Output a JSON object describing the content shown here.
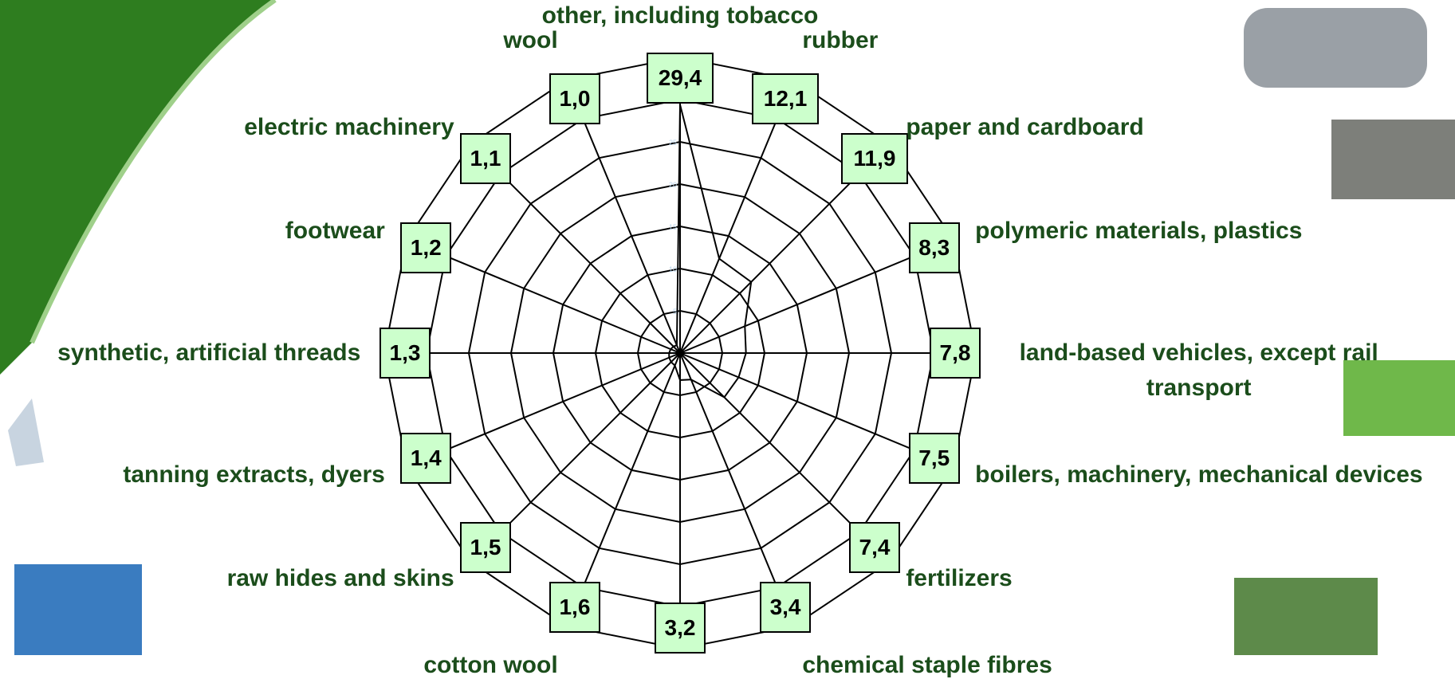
{
  "chart_data": {
    "type": "radar",
    "categories": [
      "other, including tobacco",
      "rubber",
      "paper and cardboard",
      "polymeric materials, plastics",
      "land-based vehicles, except rail transport",
      "boilers, machinery, mechanical devices",
      "fertilizers",
      "chemical staple fibres",
      null,
      "cotton wool",
      "raw hides and skins",
      "tanning extracts, dyers",
      "synthetic, artificial threads",
      "footwear",
      "electric machinery",
      "wool"
    ],
    "values": [
      29.4,
      12.1,
      11.9,
      8.3,
      7.8,
      7.5,
      7.4,
      3.4,
      3.2,
      1.6,
      1.5,
      1.4,
      1.3,
      1.2,
      1.1,
      1.0
    ],
    "value_labels": [
      "29,4",
      "12,1",
      "11,9",
      "8,3",
      "7,8",
      "7,5",
      "7,4",
      "3,4",
      "3,2",
      "1,6",
      "1,5",
      "1,4",
      "1,3",
      "1,2",
      "1,1",
      "1,0"
    ],
    "color": "#000000",
    "ylim": [
      0,
      35
    ],
    "yticks": [
      0,
      5,
      10,
      15,
      20,
      25,
      30,
      35
    ],
    "grid": true
  }
}
